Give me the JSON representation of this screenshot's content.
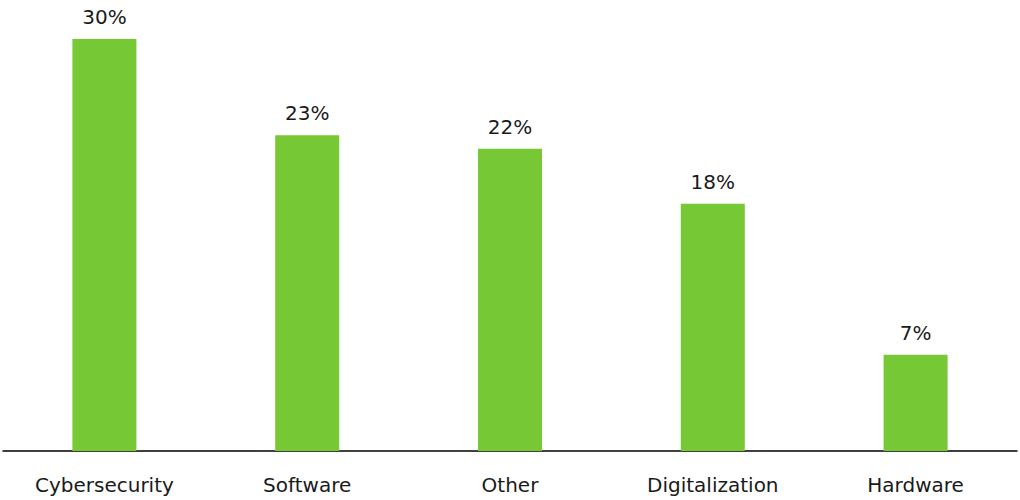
{
  "chart_data": {
    "type": "bar",
    "categories": [
      "Cybersecurity",
      "Software",
      "Other",
      "Digitalization",
      "Hardware"
    ],
    "values": [
      30,
      23,
      22,
      18,
      7
    ],
    "value_labels": [
      "30%",
      "23%",
      "22%",
      "18%",
      "7%"
    ],
    "color": "#76c935",
    "ylim": [
      0,
      30
    ],
    "grid": false,
    "data_labels": true,
    "tick_labels": "x"
  }
}
